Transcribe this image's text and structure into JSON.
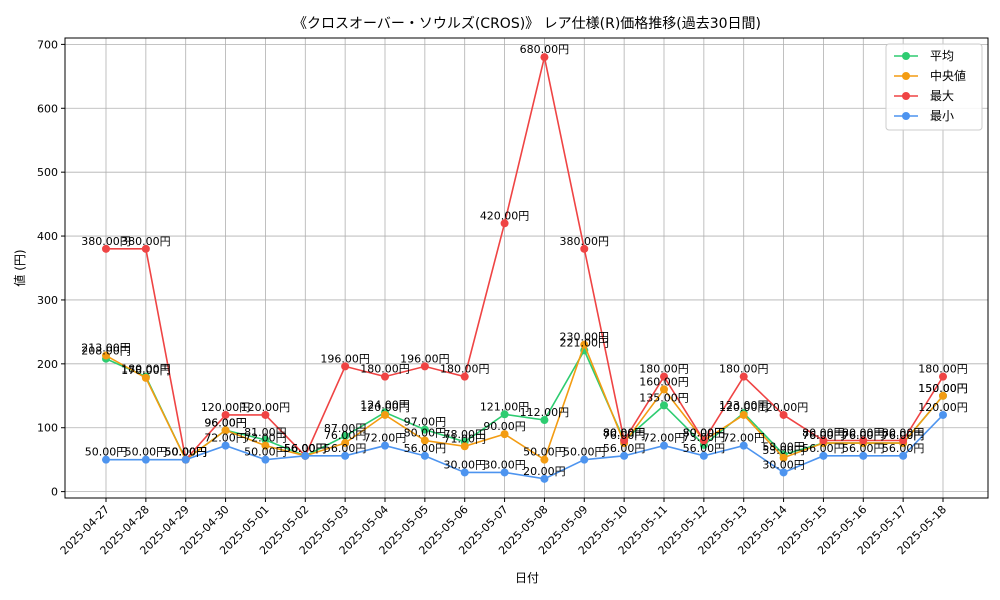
{
  "chart_data": {
    "type": "line",
    "title": "《クロスオーバー・ソウルズ(CROS)》 レア仕様(R)価格推移(過去30日間)",
    "xlabel": "日付",
    "ylabel": "値 (円)",
    "ylim": [
      -10,
      710
    ],
    "yticks": [
      0,
      100,
      200,
      300,
      400,
      500,
      600,
      700
    ],
    "grid": true,
    "legend_position": "top-right",
    "value_suffix": "円",
    "categories": [
      "2025-04-27",
      "2025-04-28",
      "2025-04-29",
      "2025-04-30",
      "2025-05-01",
      "2025-05-02",
      "2025-05-03",
      "2025-05-04",
      "2025-05-05",
      "2025-05-06",
      "2025-05-07",
      "2025-05-08",
      "2025-05-09",
      "2025-05-10",
      "2025-05-11",
      "2025-05-12",
      "2025-05-13",
      "2025-05-14",
      "2025-05-15",
      "2025-05-16",
      "2025-05-17",
      "2025-05-18"
    ],
    "series": [
      {
        "name": "平均",
        "color": "#2ecc71",
        "values": [
          208,
          180,
          50,
          96,
          81,
          56,
          87,
          124,
          97,
          78,
          121,
          112,
          221,
          80,
          135,
          73,
          123,
          58,
          76,
          76,
          76,
          150
        ]
      },
      {
        "name": "中央値",
        "color": "#f39c12",
        "values": [
          213,
          178,
          50,
          96,
          72,
          56,
          76,
          120,
          80,
          71,
          90,
          50,
          230,
          76,
          160,
          80,
          120,
          53,
          76,
          76,
          76,
          150
        ]
      },
      {
        "name": "最大",
        "color": "#ef4444",
        "values": [
          380,
          380,
          50,
          120,
          120,
          56,
          196,
          180,
          196,
          180,
          420,
          680,
          380,
          80,
          180,
          80,
          180,
          120,
          80,
          80,
          80,
          180
        ]
      },
      {
        "name": "最小",
        "color": "#4d94ef",
        "values": [
          50,
          50,
          50,
          72,
          50,
          56,
          56,
          72,
          56,
          30,
          30,
          20,
          50,
          56,
          72,
          56,
          72,
          30,
          56,
          56,
          56,
          120
        ]
      }
    ]
  }
}
